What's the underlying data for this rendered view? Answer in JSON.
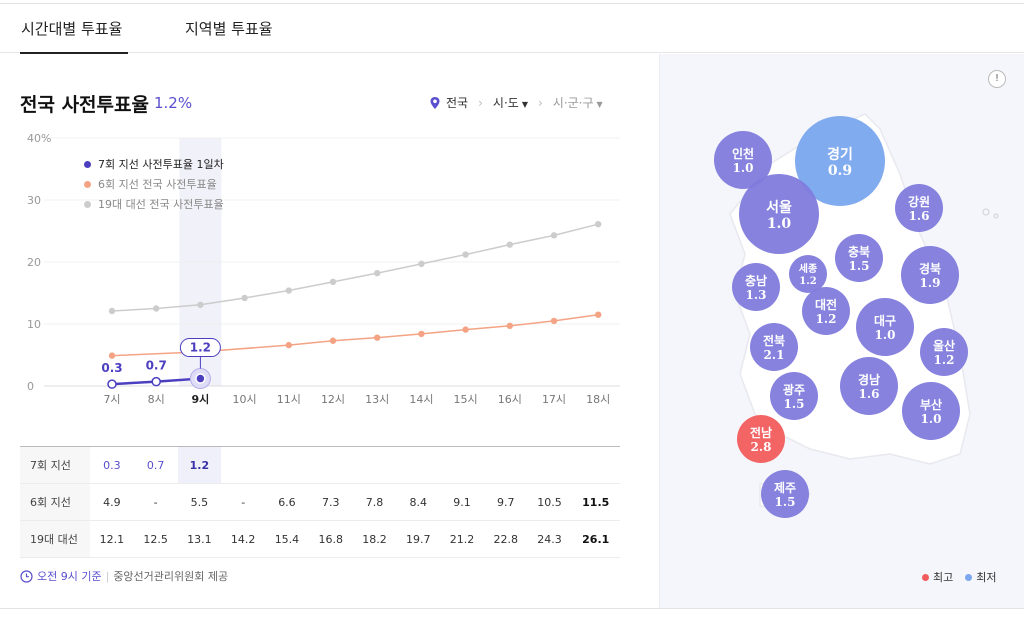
{
  "tabs": [
    {
      "label": "시간대별 투표율"
    },
    {
      "label": "지역별 투표율"
    }
  ],
  "header": {
    "title": "전국 사전투표율",
    "rate": "1.2%"
  },
  "breadcrumb": {
    "level1": "전국",
    "level2": "시·도",
    "level3": "시·군·구"
  },
  "chart_data": {
    "type": "line",
    "categories": [
      "7시",
      "8시",
      "9시",
      "10시",
      "11시",
      "12시",
      "13시",
      "14시",
      "15시",
      "16시",
      "17시",
      "18시"
    ],
    "ylim": [
      0,
      40
    ],
    "yticks": [
      0,
      10,
      20,
      30,
      40
    ],
    "ytick_labels": [
      "0",
      "10",
      "20",
      "30",
      "40%"
    ],
    "highlight_category": "9시",
    "series": [
      {
        "name": "7회 지선 사전투표율 1일차",
        "color": "#4b3fc0",
        "values": [
          0.3,
          0.7,
          1.2,
          null,
          null,
          null,
          null,
          null,
          null,
          null,
          null,
          null
        ],
        "labels": [
          "0.3",
          "0.7",
          "1.2"
        ]
      },
      {
        "name": "6회 지선 전국 사전투표율",
        "color": "#f4a384",
        "values": [
          4.9,
          null,
          5.5,
          null,
          6.6,
          7.3,
          7.8,
          8.4,
          9.1,
          9.7,
          10.5,
          11.5
        ]
      },
      {
        "name": "19대 대선 전국 사전투표율",
        "color": "#cccccc",
        "values": [
          12.1,
          12.5,
          13.1,
          14.2,
          15.4,
          16.8,
          18.2,
          19.7,
          21.2,
          22.8,
          24.3,
          26.1
        ]
      }
    ]
  },
  "table": {
    "rows": [
      {
        "label": "7회 지선",
        "values": [
          "0.3",
          "0.7",
          "1.2",
          "",
          "",
          "",
          "",
          "",
          "",
          "",
          "",
          ""
        ]
      },
      {
        "label": "6회 지선",
        "values": [
          "4.9",
          "-",
          "5.5",
          "-",
          "6.6",
          "7.3",
          "7.8",
          "8.4",
          "9.1",
          "9.7",
          "10.5",
          "11.5"
        ]
      },
      {
        "label": "19대 대선",
        "values": [
          "12.1",
          "12.5",
          "13.1",
          "14.2",
          "15.4",
          "16.8",
          "18.2",
          "19.7",
          "21.2",
          "22.8",
          "24.3",
          "26.1"
        ]
      }
    ]
  },
  "footer": {
    "time": "오전 9시 기준",
    "source": "중앙선거관리위원회 제공"
  },
  "map": {
    "info": "!",
    "regions": [
      {
        "name": "인천",
        "value": "1.0",
        "color": "#7f7bdc"
      },
      {
        "name": "경기",
        "value": "0.9",
        "color": "#7aa7ee"
      },
      {
        "name": "서울",
        "value": "1.0",
        "color": "#7f7bdc"
      },
      {
        "name": "강원",
        "value": "1.6",
        "color": "#7f7bdc"
      },
      {
        "name": "세종",
        "value": "1.2",
        "color": "#7f7bdc"
      },
      {
        "name": "충북",
        "value": "1.5",
        "color": "#7f7bdc"
      },
      {
        "name": "충남",
        "value": "1.3",
        "color": "#7f7bdc"
      },
      {
        "name": "경북",
        "value": "1.9",
        "color": "#7f7bdc"
      },
      {
        "name": "대전",
        "value": "1.2",
        "color": "#7f7bdc"
      },
      {
        "name": "대구",
        "value": "1.0",
        "color": "#7f7bdc"
      },
      {
        "name": "전북",
        "value": "2.1",
        "color": "#7f7bdc"
      },
      {
        "name": "울산",
        "value": "1.2",
        "color": "#7f7bdc"
      },
      {
        "name": "경남",
        "value": "1.6",
        "color": "#7f7bdc"
      },
      {
        "name": "광주",
        "value": "1.5",
        "color": "#7f7bdc"
      },
      {
        "name": "부산",
        "value": "1.0",
        "color": "#7f7bdc"
      },
      {
        "name": "전남",
        "value": "2.8",
        "color": "#f25c5c"
      },
      {
        "name": "제주",
        "value": "1.5",
        "color": "#7f7bdc"
      }
    ],
    "legend": [
      {
        "label": "최고",
        "color": "#f25c5c"
      },
      {
        "label": "최저",
        "color": "#7aa7ee"
      }
    ]
  }
}
